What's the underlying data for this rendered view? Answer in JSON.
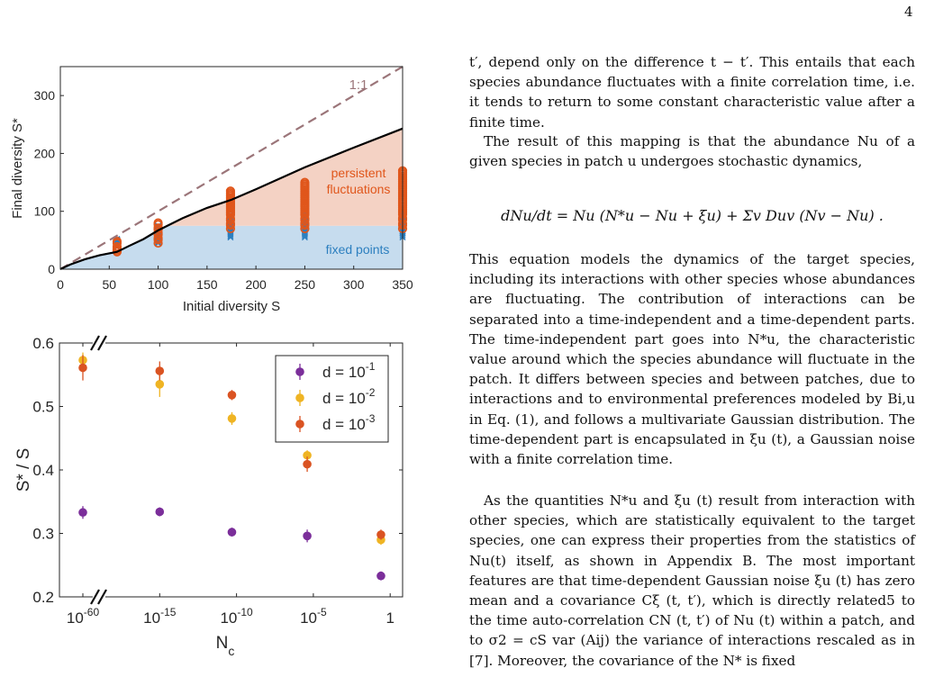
{
  "page_number": "4",
  "colors": {
    "fixed_region": "#c6dcee",
    "persistent_region": "#f4d2c4",
    "boundary_line": "#000000",
    "diagonal": "#9b7579",
    "fixed_points": "#2c7fbf",
    "persistent_points": "#e0561b",
    "d_1": "#7b2e9a",
    "d_2": "#efb423",
    "d_3": "#da5322"
  },
  "chart_data": [
    {
      "type": "scatter",
      "xlabel": "Initial diversity S",
      "ylabel": "Final diversity S*",
      "xlim": [
        0,
        350
      ],
      "ylim": [
        0,
        350
      ],
      "x_ticks": [
        0,
        50,
        100,
        150,
        200,
        250,
        300,
        350
      ],
      "y_ticks": [
        0,
        100,
        200,
        300
      ],
      "annotations": {
        "diagonal": "1:1",
        "upper_region": "persistent\nfluctuations",
        "lower_region": "fixed points"
      },
      "boundary_curve": {
        "x": [
          0,
          10,
          25,
          40,
          58,
          70,
          85,
          100,
          125,
          150,
          175,
          200,
          250,
          300,
          350
        ],
        "y": [
          0,
          8,
          17,
          24,
          30,
          40,
          52,
          67,
          88,
          106,
          120,
          138,
          176,
          210,
          243
        ]
      },
      "fixed_point_line": {
        "x": [
          0,
          20,
          40,
          58,
          80,
          100,
          350
        ],
        "y": [
          0,
          22,
          34,
          44,
          60,
          75,
          75
        ]
      },
      "series": [
        {
          "name": "fixed points",
          "x": [
            58,
            100,
            174,
            250,
            350
          ],
          "y_min": [
            38,
            45,
            55,
            55,
            55
          ],
          "y_max": [
            52,
            75,
            95,
            97,
            100
          ]
        },
        {
          "name": "persistent fluctuations",
          "x": [
            58,
            100,
            174,
            250,
            350
          ],
          "y_min": [
            30,
            45,
            70,
            70,
            70
          ],
          "y_max": [
            48,
            80,
            135,
            150,
            170
          ]
        }
      ]
    },
    {
      "type": "scatter",
      "xlabel": "N",
      "xlabel_sub": "c",
      "ylabel": "S* / S",
      "xscale": "log",
      "ylim": [
        0.2,
        0.6
      ],
      "y_ticks": [
        0.2,
        0.3,
        0.4,
        0.5,
        0.6
      ],
      "x_tick_labels": [
        {
          "base": "10",
          "exp": "-60",
          "pos": 0
        },
        {
          "base": "10",
          "exp": "-15",
          "pos": 1
        },
        {
          "base": "10",
          "exp": "-10",
          "pos": 2
        },
        {
          "base": "10",
          "exp": "-5",
          "pos": 3
        },
        {
          "base": "1",
          "exp": "",
          "pos": 4
        }
      ],
      "legend_position": "top-right",
      "series": [
        {
          "name": "d = 10",
          "exp": "-1",
          "color": "#7b2e9a",
          "x": [
            0,
            1,
            1.94,
            2.92,
            3.88
          ],
          "y": [
            0.333,
            0.334,
            0.302,
            0.296,
            0.233
          ],
          "err": [
            0.01,
            0.007,
            0.007,
            0.01,
            0.007
          ]
        },
        {
          "name": "d = 10",
          "exp": "-2",
          "color": "#efb423",
          "x": [
            0,
            1,
            1.94,
            2.92,
            3.88
          ],
          "y": [
            0.573,
            0.535,
            0.481,
            0.423,
            0.29
          ],
          "err": [
            0.012,
            0.02,
            0.01,
            0.008,
            0.008
          ]
        },
        {
          "name": "d = 10",
          "exp": "-3",
          "color": "#da5322",
          "x": [
            0,
            1,
            1.94,
            2.92,
            3.88
          ],
          "y": [
            0.561,
            0.556,
            0.518,
            0.409,
            0.298
          ],
          "err": [
            0.02,
            0.015,
            0.008,
            0.012,
            0.008
          ]
        }
      ]
    }
  ],
  "text": {
    "p1": "t′, depend only on the difference t − t′. This entails that each species abundance fluctuates with a finite correlation time, i.e. it tends to return to some constant characteristic value after a finite time.",
    "p2": "The result of this mapping is that the abundance Nu of a given species in patch u undergoes stochastic dynamics,",
    "equation": "dNu/dt = Nu (N*u − Nu + ξu) + Σv Duv (Nv − Nu) .",
    "p3": "This equation models the dynamics of the target species, including its interactions with other species whose abundances are fluctuating. The contribution of interactions can be separated into a time-independent and a time-dependent parts. The time-independent part goes into N*u, the characteristic value around which the species abundance will fluctuate in the patch. It differs between species and between patches, due to interactions and to environmental preferences modeled by Bi,u in Eq. (1), and follows a multivariate Gaussian distribution. The time-dependent part is encapsulated in ξu (t), a Gaussian noise with a finite correlation time.",
    "p4": "As the quantities N*u and ξu (t) result from interaction with other species, which are statistically equivalent to the target species, one can express their properties from the statistics of Nu(t) itself, as shown in Appendix B. The most important features are that time-dependent Gaussian noise ξu (t) has zero mean and a covariance Cξ (t, t′), which is directly related5 to the time auto-correlation CN (t, t′) of Nu (t) within a patch, and to σ2 = cS var (Aij) the variance of interactions rescaled as in [7]. Moreover, the covariance of the N* is fixed"
  }
}
